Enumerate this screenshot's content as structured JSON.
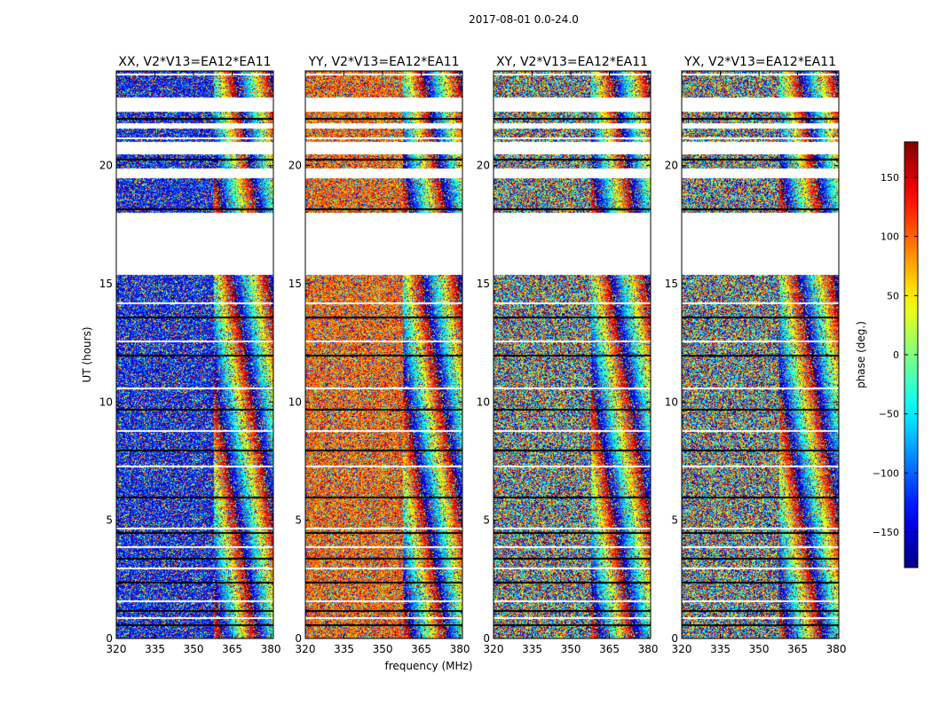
{
  "figure": {
    "suptitle": "2017-08-01 0.0-24.0",
    "xlabel": "frequency (MHz)",
    "ylabel": "UT (hours)"
  },
  "chart_data": [
    {
      "type": "heatmap",
      "title": "XX, V2*V13=EA12*EA11",
      "xlabel": "frequency (MHz)",
      "ylabel": "UT (hours)",
      "xlim": [
        320,
        381
      ],
      "ylim": [
        0,
        24
      ],
      "xticks": [
        320,
        335,
        350,
        365,
        380
      ],
      "yticks": [
        0,
        5,
        10,
        15,
        20
      ],
      "bias_phase": -130
    },
    {
      "type": "heatmap",
      "title": "YY, V2*V13=EA12*EA11",
      "xlabel": "frequency (MHz)",
      "ylabel": "UT (hours)",
      "xlim": [
        320,
        381
      ],
      "ylim": [
        0,
        24
      ],
      "xticks": [
        320,
        335,
        350,
        365,
        380
      ],
      "yticks": [
        0,
        5,
        10,
        15,
        20
      ],
      "bias_phase": 100
    },
    {
      "type": "heatmap",
      "title": "XY, V2*V13=EA12*EA11",
      "xlabel": "frequency (MHz)",
      "ylabel": "UT (hours)",
      "xlim": [
        320,
        381
      ],
      "ylim": [
        0,
        24
      ],
      "xticks": [
        320,
        335,
        350,
        365,
        380
      ],
      "yticks": [
        0,
        5,
        10,
        15,
        20
      ],
      "bias_phase": null
    },
    {
      "type": "heatmap",
      "title": "YX, V2*V13=EA12*EA11",
      "xlabel": "frequency (MHz)",
      "ylabel": "UT (hours)",
      "xlim": [
        320,
        381
      ],
      "ylim": [
        0,
        24
      ],
      "xticks": [
        320,
        335,
        350,
        365,
        380
      ],
      "yticks": [
        0,
        5,
        10,
        15,
        20
      ],
      "bias_phase": null
    }
  ],
  "colorbar": {
    "label": "phase (deg.)",
    "range": [
      -180,
      180
    ],
    "ticks": [
      -150,
      -100,
      -50,
      0,
      50,
      100,
      150
    ],
    "tick_labels": [
      "−150",
      "−100",
      "−50",
      "0",
      "50",
      "100",
      "150"
    ],
    "colormap": "jet"
  },
  "blank_time_ranges_hours": [
    [
      15.4,
      18.0
    ],
    [
      22.3,
      22.9
    ],
    [
      21.6,
      21.8
    ],
    [
      20.5,
      21.0
    ],
    [
      19.5,
      19.9
    ]
  ],
  "gap_lines_hours": [
    23.9,
    22.0,
    21.2,
    20.3,
    19.6,
    18.2,
    14.2,
    13.6,
    12.6,
    12.0,
    10.6,
    9.7,
    8.8,
    8.0,
    7.3,
    6.0,
    4.7,
    4.5,
    3.9,
    3.4,
    3.0,
    2.4,
    1.6,
    1.2,
    0.9,
    0.6
  ],
  "colors": {
    "frame": "#000000",
    "background": "#ffffff"
  }
}
